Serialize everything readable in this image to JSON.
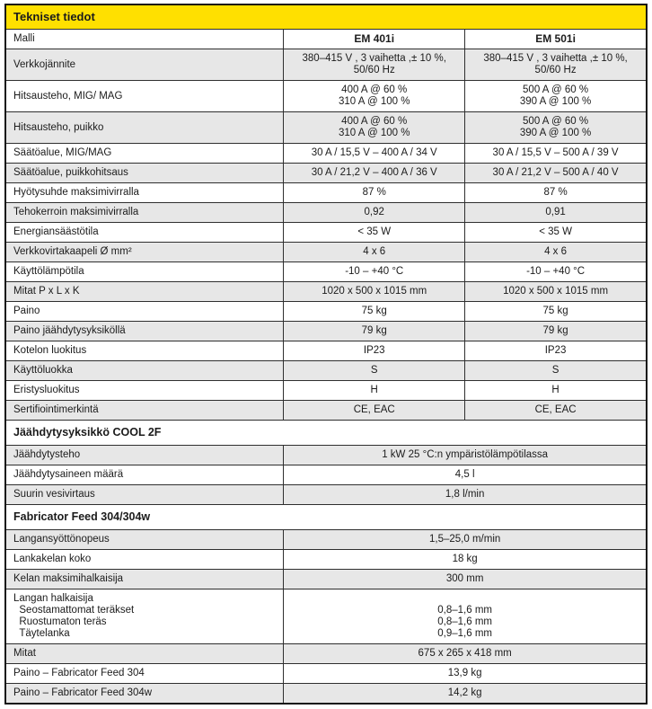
{
  "colors": {
    "header_yellow": "#ffe000",
    "row_shade": "#e7e7e7",
    "border": "#2f2f2f",
    "text": "#1b1b1b"
  },
  "table": {
    "rows": [
      {
        "kind": "title",
        "text": "Tekniset tiedot"
      },
      {
        "kind": "spec",
        "shaded": false,
        "bold": true,
        "label": "Malli",
        "values": [
          "EM 401i",
          "EM 501i"
        ]
      },
      {
        "kind": "spec",
        "shaded": true,
        "label": "Verkkojännite",
        "values": [
          "380–415 V , 3 vaihetta ,± 10 %,\n50/60 Hz",
          "380–415 V , 3 vaihetta ,± 10 %,\n50/60 Hz"
        ]
      },
      {
        "kind": "spec",
        "shaded": false,
        "label": "Hitsausteho, MIG/ MAG",
        "values": [
          "400 A @ 60 %\n310 A @ 100 %",
          "500 A @ 60 %\n390 A @ 100 %"
        ]
      },
      {
        "kind": "spec",
        "shaded": true,
        "label": "Hitsausteho, puikko",
        "values": [
          "400 A @ 60 %\n310 A @ 100 %",
          "500 A @ 60 %\n390 A @ 100 %"
        ]
      },
      {
        "kind": "spec",
        "shaded": false,
        "label": "Säätöalue, MIG/MAG",
        "values": [
          "30 A / 15,5 V – 400 A / 34 V",
          "30 A / 15,5 V – 500 A / 39 V"
        ]
      },
      {
        "kind": "spec",
        "shaded": true,
        "label": "Säätöalue, puikkohitsaus",
        "values": [
          "30 A / 21,2 V – 400 A / 36 V",
          "30 A / 21,2 V – 500 A / 40 V"
        ]
      },
      {
        "kind": "spec",
        "shaded": false,
        "label": "Hyötysuhde maksimivirralla",
        "values": [
          "87 %",
          "87 %"
        ]
      },
      {
        "kind": "spec",
        "shaded": true,
        "label": "Tehokerroin maksimivirralla",
        "values": [
          "0,92",
          "0,91"
        ]
      },
      {
        "kind": "spec",
        "shaded": false,
        "label": "Energiansäästötila",
        "values": [
          "< 35 W",
          "< 35 W"
        ]
      },
      {
        "kind": "spec",
        "shaded": true,
        "label": "Verkkovirtakaapeli Ø mm²",
        "values": [
          "4 x 6",
          "4 x 6"
        ]
      },
      {
        "kind": "spec",
        "shaded": false,
        "label": "Käyttölämpötila",
        "values": [
          "-10 – +40 °C",
          "-10 – +40 °C"
        ]
      },
      {
        "kind": "spec",
        "shaded": true,
        "label": "Mitat P x L x K",
        "values": [
          "1020 x 500 x 1015 mm",
          "1020 x 500 x 1015 mm"
        ]
      },
      {
        "kind": "spec",
        "shaded": false,
        "label": "Paino",
        "values": [
          "75 kg",
          "75 kg"
        ]
      },
      {
        "kind": "spec",
        "shaded": true,
        "label": "Paino jäähdytysyksiköllä",
        "values": [
          "79 kg",
          "79 kg"
        ]
      },
      {
        "kind": "spec",
        "shaded": false,
        "label": "Kotelon luokitus",
        "values": [
          "IP23",
          "IP23"
        ]
      },
      {
        "kind": "spec",
        "shaded": true,
        "label": "Käyttöluokka",
        "values": [
          "S",
          "S"
        ]
      },
      {
        "kind": "spec",
        "shaded": false,
        "label": "Eristysluokitus",
        "values": [
          "H",
          "H"
        ]
      },
      {
        "kind": "spec",
        "shaded": true,
        "label": "Sertifiointimerkintä",
        "values": [
          "CE, EAC",
          "CE, EAC"
        ]
      },
      {
        "kind": "section",
        "text": "Jäähdytysyksikkö COOL 2F"
      },
      {
        "kind": "spec",
        "shaded": true,
        "label": "Jäähdytysteho",
        "values": [
          "1 kW 25 °C:n ympäristölämpötilassa"
        ]
      },
      {
        "kind": "spec",
        "shaded": false,
        "label": "Jäähdytysaineen määrä",
        "values": [
          "4,5 l"
        ]
      },
      {
        "kind": "spec",
        "shaded": true,
        "label": "Suurin vesivirtaus",
        "values": [
          "1,8 l/min"
        ]
      },
      {
        "kind": "section",
        "text": "Fabricator Feed 304/304w"
      },
      {
        "kind": "spec",
        "shaded": true,
        "label": "Langansyöttönopeus",
        "values": [
          "1,5–25,0 m/min"
        ]
      },
      {
        "kind": "spec",
        "shaded": false,
        "label": "Lankakelan koko",
        "values": [
          "18 kg"
        ]
      },
      {
        "kind": "spec",
        "shaded": true,
        "label": "Kelan maksimihalkaisija",
        "values": [
          "300 mm"
        ]
      },
      {
        "kind": "spec",
        "shaded": false,
        "label": "Langan halkaisija\n  Seostamattomat teräkset\n  Ruostumaton teräs\n  Täytelanka",
        "values": [
          "\n0,8–1,6 mm\n0,8–1,6 mm\n0,9–1,6 mm"
        ]
      },
      {
        "kind": "spec",
        "shaded": true,
        "label": "Mitat",
        "values": [
          "675 x 265 x 418 mm"
        ]
      },
      {
        "kind": "spec",
        "shaded": false,
        "label": "Paino – Fabricator Feed 304",
        "values": [
          "13,9 kg"
        ]
      },
      {
        "kind": "spec",
        "shaded": true,
        "label": "Paino – Fabricator Feed 304w",
        "values": [
          "14,2 kg"
        ]
      }
    ]
  }
}
